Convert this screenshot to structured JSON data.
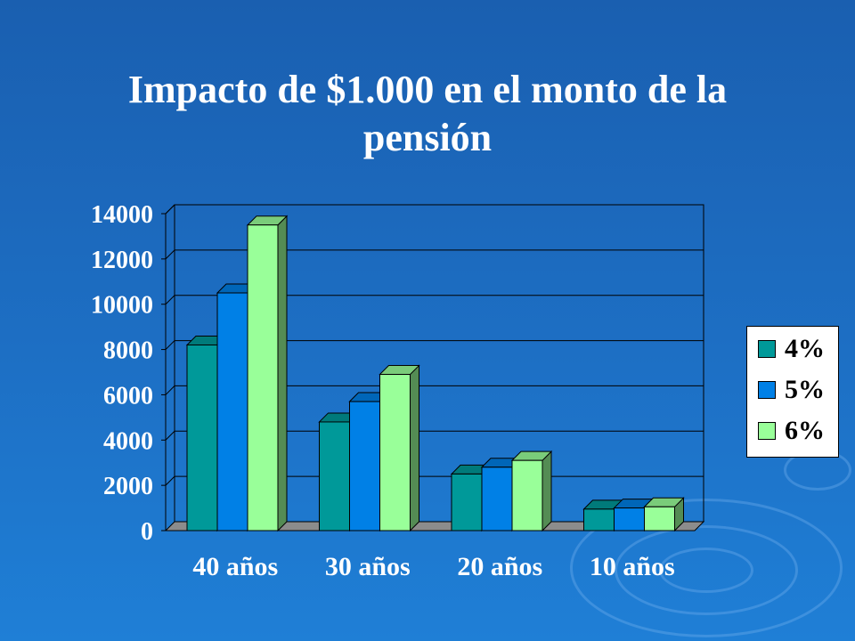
{
  "chart_data": {
    "type": "bar",
    "title": "Impacto de $1.000 en el monto de la pensión",
    "categories": [
      "40 años",
      "30 años",
      "20 años",
      "10 años"
    ],
    "series": [
      {
        "name": "4%",
        "color": "#009999",
        "values": [
          8200,
          4800,
          2500,
          950
        ]
      },
      {
        "name": "5%",
        "color": "#0080e6",
        "values": [
          10500,
          5700,
          2800,
          1000
        ]
      },
      {
        "name": "6%",
        "color": "#99ff99",
        "values": [
          13500,
          6900,
          3100,
          1050
        ]
      }
    ],
    "ylim": [
      0,
      14000
    ],
    "yticks": [
      "0",
      "2000",
      "4000",
      "6000",
      "8000",
      "10000",
      "12000",
      "14000"
    ],
    "grid": true,
    "legend_position": "right"
  }
}
